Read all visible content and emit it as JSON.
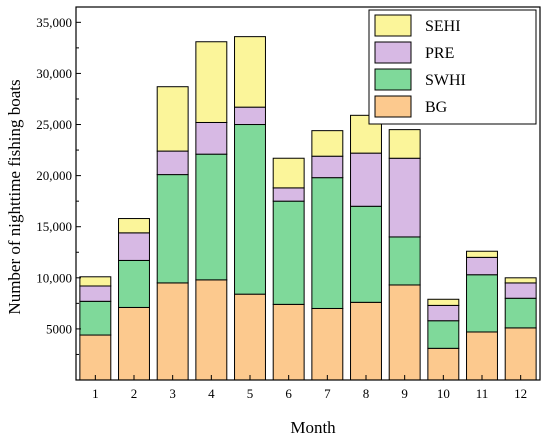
{
  "chart_data": {
    "type": "bar",
    "stacked": true,
    "xlabel": "Month",
    "ylabel": "Number of nighttime fishing boats",
    "categories": [
      "1",
      "2",
      "3",
      "4",
      "5",
      "6",
      "7",
      "8",
      "9",
      "10",
      "11",
      "12"
    ],
    "ylim": [
      0,
      36500
    ],
    "y_ticks": [
      5000,
      10000,
      15000,
      20000,
      25000,
      30000,
      35000
    ],
    "y_tick_labels": [
      "5000",
      "10,000",
      "15,000",
      "20,000",
      "25,000",
      "30,000",
      "35,000"
    ],
    "legend_position": "top-right",
    "grid": false,
    "series": [
      {
        "name": "BG",
        "color": "#fcc98e",
        "values": [
          4400,
          7100,
          9500,
          9800,
          8400,
          7400,
          7000,
          7600,
          9300,
          3100,
          4700,
          5100
        ]
      },
      {
        "name": "SWHI",
        "color": "#7fd99a",
        "values": [
          3300,
          4600,
          10600,
          12300,
          16600,
          10100,
          12800,
          9400,
          4700,
          2700,
          5600,
          2900
        ]
      },
      {
        "name": "PRE",
        "color": "#d7b9e4",
        "values": [
          1500,
          2700,
          2300,
          3100,
          1700,
          1300,
          2100,
          5200,
          7700,
          1500,
          1700,
          1500
        ]
      },
      {
        "name": "SEHI",
        "color": "#fbf59a",
        "values": [
          900,
          1400,
          6300,
          7900,
          6900,
          2900,
          2500,
          3700,
          2800,
          600,
          600,
          500
        ]
      }
    ],
    "legend_order": [
      "SEHI",
      "PRE",
      "SWHI",
      "BG"
    ]
  }
}
